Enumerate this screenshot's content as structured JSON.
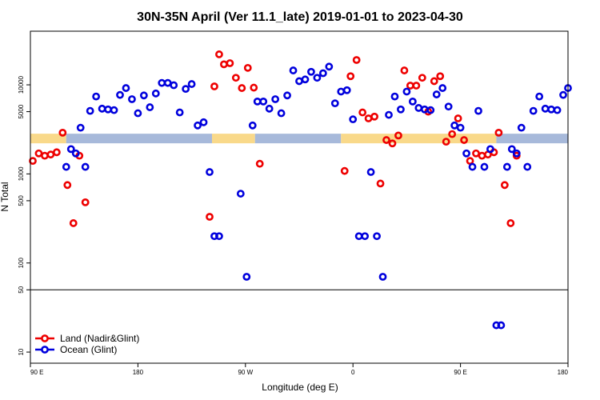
{
  "chart_data": {
    "type": "scatter",
    "title": "30N-35N April (Ver 11.1_late)   2019-01-01 to 2023-04-30",
    "xlabel": "Longitude (deg E)",
    "ylabel": "N Total",
    "x_scale": "linear",
    "y_scale": "log",
    "xlim": [
      90,
      540
    ],
    "ylim": [
      7.5,
      40000
    ],
    "x_ticks": [
      {
        "value": 90,
        "label": "90 E"
      },
      {
        "value": 180,
        "label": "180"
      },
      {
        "value": 270,
        "label": "90 W"
      },
      {
        "value": 360,
        "label": "0"
      },
      {
        "value": 450,
        "label": "90 E"
      },
      {
        "value": 540,
        "label": "180"
      }
    ],
    "y_ticks": [
      {
        "value": 10,
        "label": "10"
      },
      {
        "value": 50,
        "label": "50"
      },
      {
        "value": 100,
        "label": "100"
      },
      {
        "value": 500,
        "label": "500"
      },
      {
        "value": 1000,
        "label": "1000"
      },
      {
        "value": 5000,
        "label": "5000"
      },
      {
        "value": 10000,
        "label": "10000"
      }
    ],
    "reference_line": 50,
    "surface_band": {
      "y": 2500,
      "land_color": "#f9d98a",
      "ocean_color": "#a7b9da",
      "segments": [
        {
          "type": "land",
          "from": 90,
          "to": 120
        },
        {
          "type": "ocean",
          "from": 120,
          "to": 242
        },
        {
          "type": "land",
          "from": 242,
          "to": 278
        },
        {
          "type": "ocean",
          "from": 278,
          "to": 350
        },
        {
          "type": "land",
          "from": 350,
          "to": 480
        },
        {
          "type": "ocean",
          "from": 480,
          "to": 540
        }
      ]
    },
    "legend": "bottom-left",
    "series": [
      {
        "name": "Land (Nadir&Glint)",
        "color": "#ee0000",
        "x": [
          92,
          97,
          102,
          107,
          112,
          117,
          121,
          126,
          131,
          136,
          240,
          244,
          248,
          252,
          257,
          262,
          267,
          272,
          277,
          282,
          353,
          358,
          363,
          368,
          373,
          378,
          383,
          388,
          393,
          398,
          403,
          408,
          413,
          418,
          423,
          428,
          433,
          438,
          443,
          448,
          453,
          458,
          463,
          468,
          473,
          478,
          482,
          487,
          492,
          497
        ],
        "y": [
          1400,
          1700,
          1600,
          1650,
          1750,
          2900,
          750,
          280,
          1600,
          480,
          330,
          9600,
          22000,
          17000,
          17500,
          12000,
          9200,
          15500,
          9300,
          1300,
          1080,
          12500,
          19000,
          4900,
          4200,
          4400,
          780,
          2400,
          2200,
          2700,
          14500,
          9800,
          9800,
          12000,
          5000,
          11000,
          12500,
          2300,
          2800,
          4200,
          2400,
          1400,
          1700,
          1600,
          1650,
          1750,
          2900,
          750,
          280,
          1600
        ]
      },
      {
        "name": "Ocean (Glint)",
        "color": "#0000dd",
        "x": [
          120,
          124,
          128,
          132,
          136,
          140,
          145,
          150,
          155,
          160,
          165,
          170,
          175,
          180,
          185,
          190,
          195,
          200,
          205,
          210,
          215,
          220,
          225,
          230,
          235,
          240,
          244,
          248,
          266,
          271,
          276,
          280,
          285,
          290,
          295,
          300,
          305,
          310,
          315,
          320,
          325,
          330,
          335,
          340,
          345,
          350,
          355,
          360,
          365,
          370,
          375,
          380,
          385,
          390,
          395,
          400,
          405,
          410,
          415,
          420,
          425,
          430,
          435,
          440,
          445,
          450,
          455,
          460,
          465,
          470,
          475,
          480,
          484,
          489,
          493,
          497,
          501,
          506,
          511,
          516,
          521,
          526,
          531,
          536,
          540
        ],
        "y": [
          1200,
          1900,
          1700,
          3300,
          1200,
          5100,
          7400,
          5400,
          5300,
          5200,
          7700,
          9200,
          6900,
          4800,
          7600,
          5600,
          8000,
          10500,
          10500,
          9900,
          4900,
          9000,
          10200,
          3500,
          3800,
          1050,
          200,
          200,
          600,
          70,
          3500,
          6500,
          6500,
          5400,
          6900,
          4800,
          7600,
          14500,
          11000,
          11500,
          14000,
          12000,
          13500,
          16000,
          6200,
          8400,
          8700,
          4100,
          200,
          200,
          1050,
          200,
          70,
          4600,
          7400,
          5300,
          8400,
          6500,
          5500,
          5300,
          5200,
          7800,
          9200,
          5700,
          3500,
          3300,
          1700,
          1200,
          5100,
          1200,
          1900,
          20,
          20,
          1200,
          1900,
          1700,
          3300,
          1200,
          5100,
          7400,
          5400,
          5300,
          5200,
          7700,
          9200
        ]
      }
    ]
  }
}
